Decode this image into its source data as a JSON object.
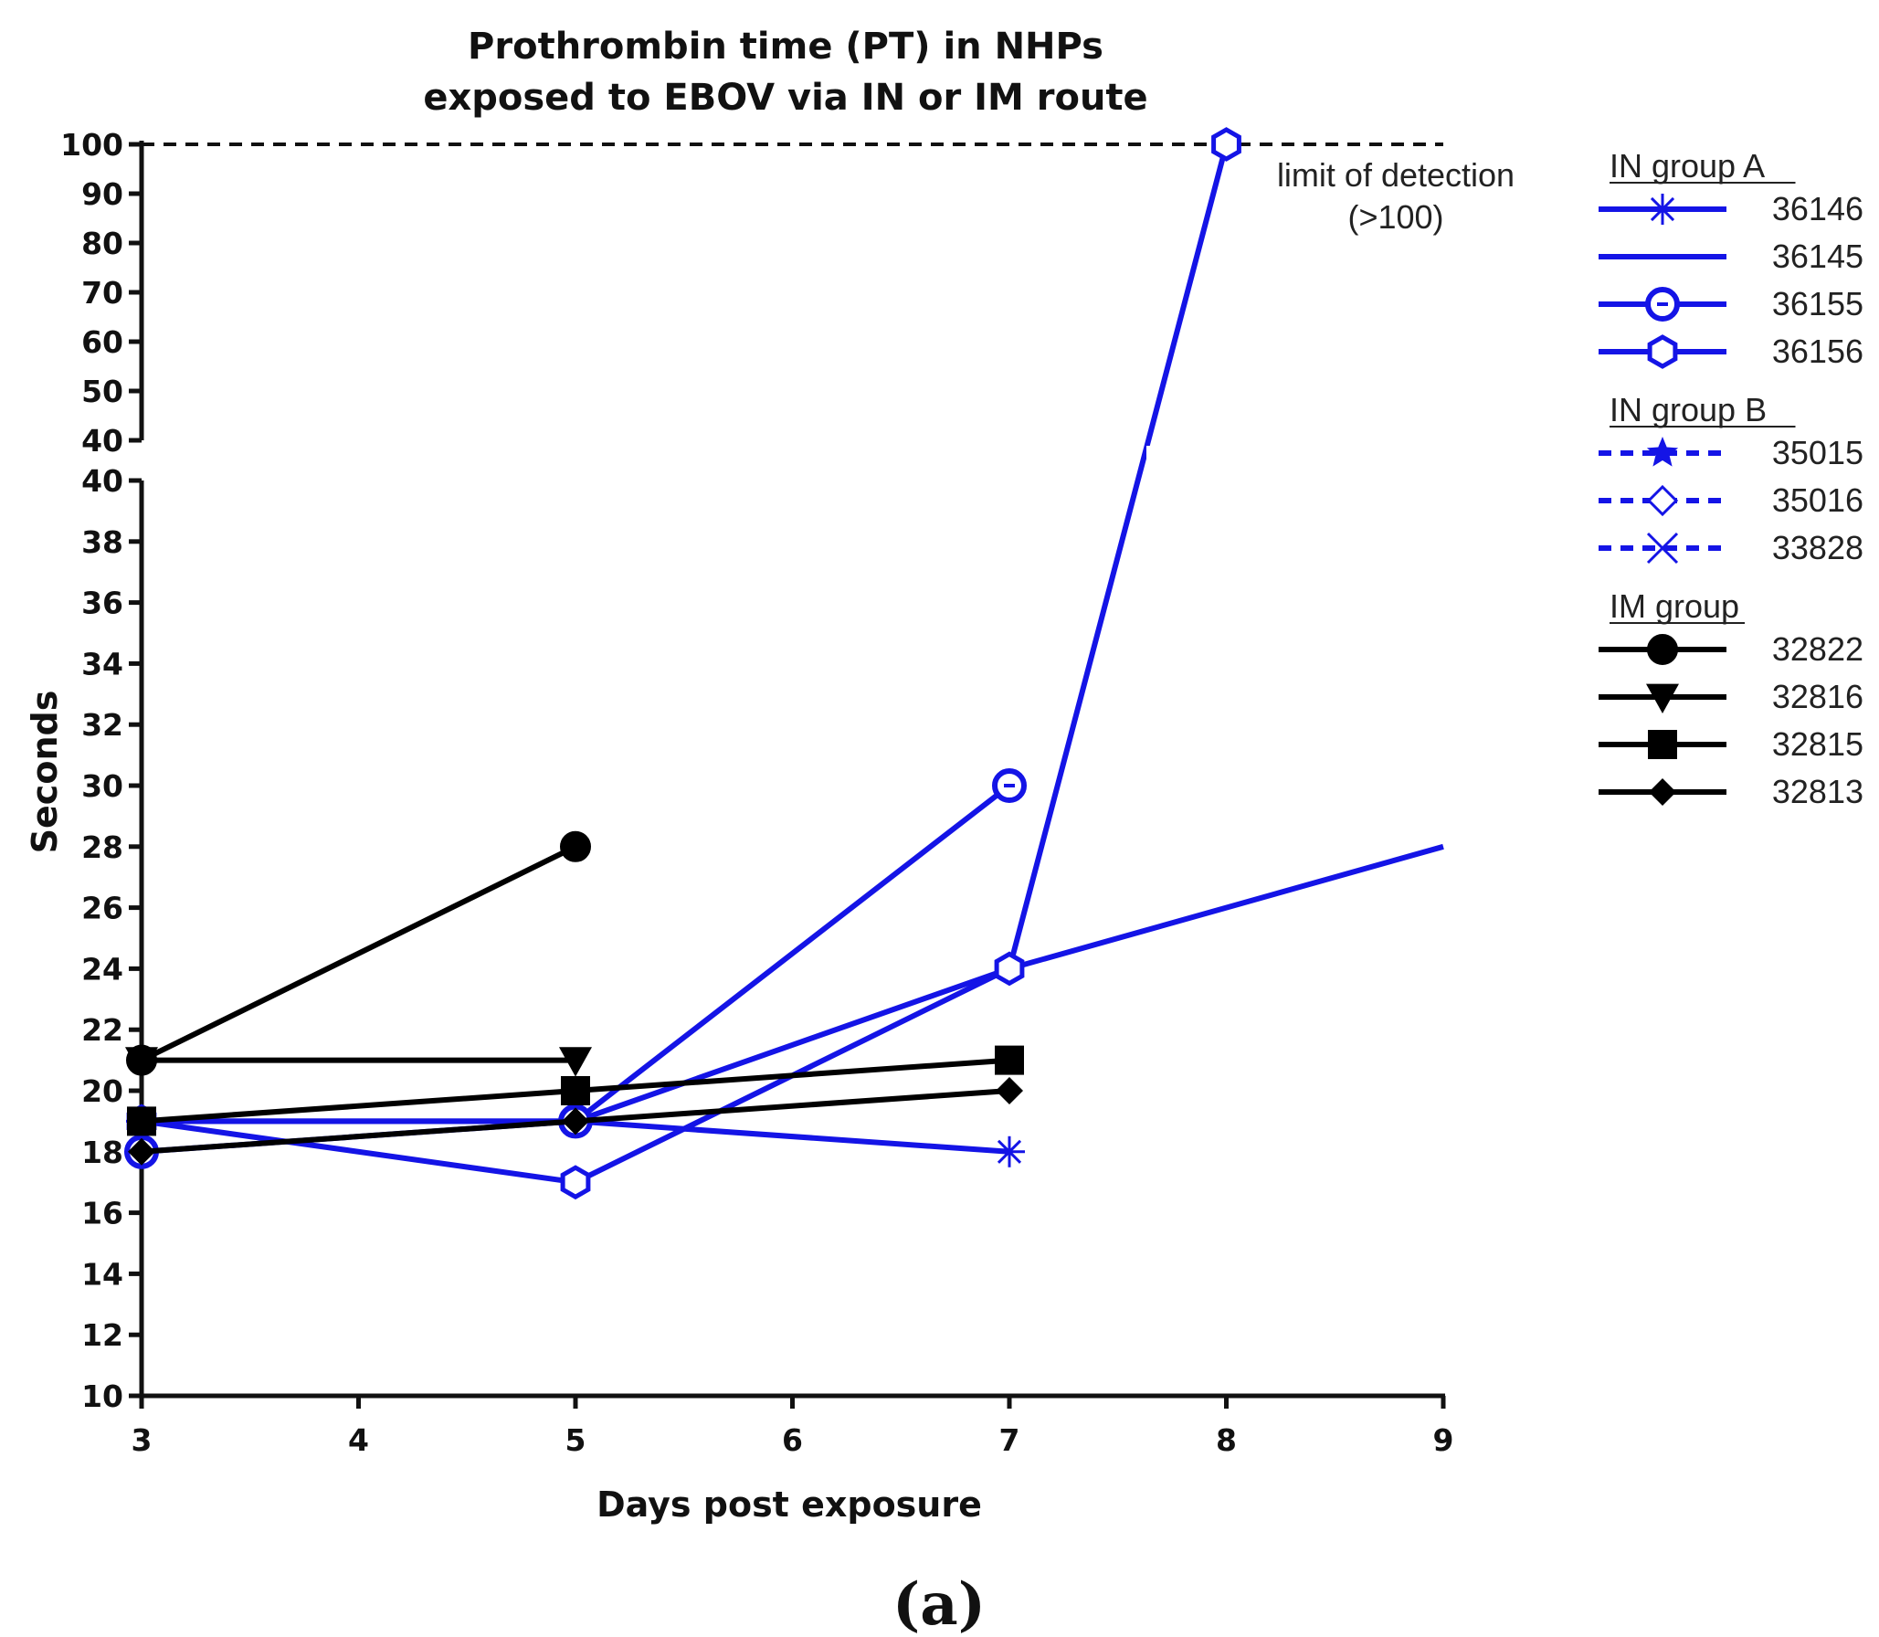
{
  "chart_data": {
    "type": "line",
    "title": [
      "Prothrombin time (PT) in NHPs",
      "exposed to EBOV via IN or IM route"
    ],
    "xlabel": "Days post exposure",
    "ylabel": "Seconds",
    "caption": "(a)",
    "x_ticks": [
      3,
      4,
      5,
      6,
      7,
      8,
      9
    ],
    "xlim": [
      3,
      9
    ],
    "y_axis_upper": {
      "ylim": [
        40,
        100
      ],
      "ticks": [
        40,
        50,
        60,
        70,
        80,
        90,
        100
      ]
    },
    "y_axis_lower": {
      "ylim": [
        10,
        40
      ],
      "ticks": [
        10,
        12,
        14,
        16,
        18,
        20,
        22,
        24,
        26,
        28,
        30,
        32,
        34,
        36,
        38,
        40
      ]
    },
    "limit_line": {
      "value": 100,
      "label": [
        "limit of detection",
        "(>100)"
      ]
    },
    "colors": {
      "in_group": "#1414e6",
      "im_group": "#000000"
    },
    "legend_groups": [
      {
        "title": "IN group  A",
        "items": [
          "36146",
          "36145",
          "36155",
          "36156"
        ]
      },
      {
        "title": "IN group  B",
        "items": [
          "35015",
          "35016",
          "33828"
        ]
      },
      {
        "title": "IM group",
        "items": [
          "32822",
          "32816",
          "32815",
          "32813"
        ]
      }
    ],
    "series": [
      {
        "name": "36146",
        "group": "IN group A",
        "marker": "asterisk",
        "line": "solid",
        "color": "#1414e6",
        "x": [
          3,
          5,
          7
        ],
        "y": [
          19,
          19,
          18
        ]
      },
      {
        "name": "36145",
        "group": "IN group A",
        "marker": "none",
        "line": "solid",
        "color": "#1414e6",
        "x": [
          3,
          5,
          7,
          9
        ],
        "y": [
          19,
          19,
          24,
          28
        ]
      },
      {
        "name": "36155",
        "group": "IN group A",
        "marker": "circle-open",
        "line": "solid",
        "color": "#1414e6",
        "x": [
          3,
          5,
          7
        ],
        "y": [
          18,
          19,
          30
        ]
      },
      {
        "name": "36156",
        "group": "IN group A",
        "marker": "hexagon-open",
        "line": "solid",
        "color": "#1414e6",
        "x": [
          3,
          5,
          7,
          8
        ],
        "y": [
          19,
          17,
          24,
          100
        ]
      },
      {
        "name": "35015",
        "group": "IN group B",
        "marker": "star",
        "line": "dashed",
        "color": "#1414e6",
        "x": [],
        "y": []
      },
      {
        "name": "35016",
        "group": "IN group B",
        "marker": "diamond-open",
        "line": "dashed",
        "color": "#1414e6",
        "x": [],
        "y": []
      },
      {
        "name": "33828",
        "group": "IN group B",
        "marker": "x",
        "line": "dashed",
        "color": "#1414e6",
        "x": [],
        "y": []
      },
      {
        "name": "32822",
        "group": "IM group",
        "marker": "circle",
        "line": "solid",
        "color": "#000000",
        "x": [
          3,
          5
        ],
        "y": [
          21,
          28
        ]
      },
      {
        "name": "32816",
        "group": "IM group",
        "marker": "triangle-down",
        "line": "solid",
        "color": "#000000",
        "x": [
          3,
          5
        ],
        "y": [
          21,
          21
        ]
      },
      {
        "name": "32815",
        "group": "IM group",
        "marker": "square",
        "line": "solid",
        "color": "#000000",
        "x": [
          3,
          5,
          7
        ],
        "y": [
          19,
          20,
          21
        ]
      },
      {
        "name": "32813",
        "group": "IM group",
        "marker": "diamond",
        "line": "solid",
        "color": "#000000",
        "x": [
          3,
          5,
          7
        ],
        "y": [
          18,
          19,
          20
        ]
      }
    ]
  }
}
